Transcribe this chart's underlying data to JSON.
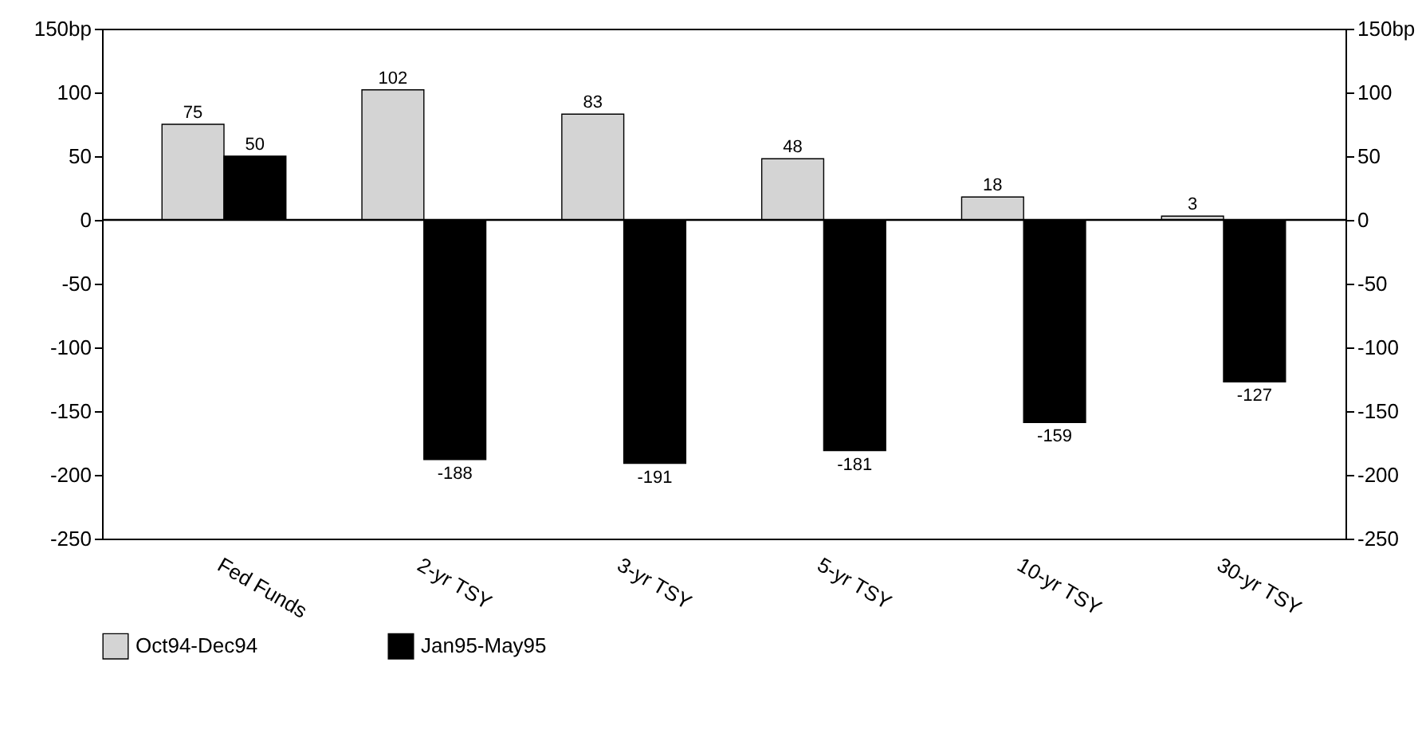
{
  "chart_data": {
    "type": "bar",
    "categories": [
      "Fed Funds",
      "2-yr TSY",
      "3-yr TSY",
      "5-yr TSY",
      "10-yr TSY",
      "30-yr TSY"
    ],
    "series": [
      {
        "name": "Oct94-Dec94",
        "color": "#d4d4d4",
        "values": [
          75,
          102,
          83,
          48,
          18,
          3
        ]
      },
      {
        "name": "Jan95-May95",
        "color": "#000000",
        "values": [
          50,
          -188,
          -191,
          -181,
          -159,
          -127
        ]
      }
    ],
    "ylim": [
      -250,
      150
    ],
    "yticks": [
      -250,
      -200,
      -150,
      -100,
      -50,
      0,
      50,
      100,
      {
        "value": 150,
        "label": "150bp"
      }
    ],
    "y2lim": [
      -250,
      150
    ],
    "y2ticks": [
      -250,
      -200,
      -150,
      -100,
      -50,
      0,
      50,
      100,
      {
        "value": 150,
        "label": "150bp"
      }
    ],
    "ref_lines": [
      {
        "axis": "y",
        "value": 0,
        "color": "#000000"
      }
    ],
    "data_labels": true,
    "grid": false,
    "legend": "bottom left"
  }
}
